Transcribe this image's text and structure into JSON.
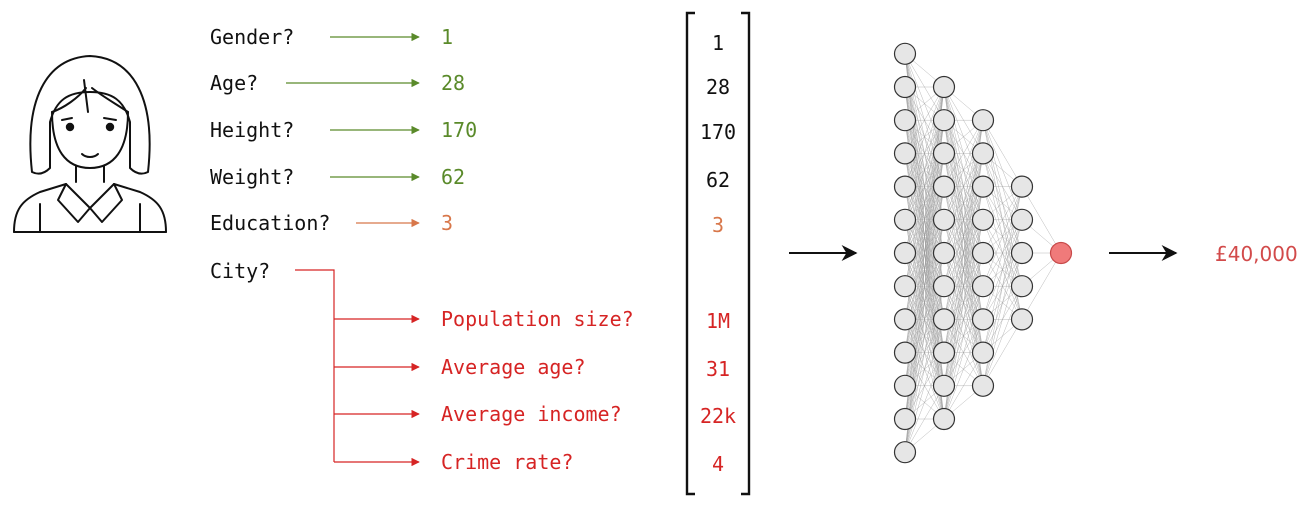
{
  "colors": {
    "text": "#111111",
    "green": "#5a8a2a",
    "orange": "#d8774a",
    "red": "#d62424",
    "output_text": "#d24a4a",
    "node_fill": "#e6e6e6",
    "node_stroke": "#333333",
    "output_node_fill": "#f07a7a",
    "edge": "#9a9a9a"
  },
  "person": {
    "icon": "person-icon"
  },
  "features": [
    {
      "question": "Gender?",
      "value": "1",
      "vector": "1",
      "color": "green"
    },
    {
      "question": "Age?",
      "value": "28",
      "vector": "28",
      "color": "green"
    },
    {
      "question": "Height?",
      "value": "170",
      "vector": "170",
      "color": "green"
    },
    {
      "question": "Weight?",
      "value": "62",
      "vector": "62",
      "color": "green"
    },
    {
      "question": "Education?",
      "value": "3",
      "vector": "3",
      "color": "orange"
    }
  ],
  "city": {
    "question": "City?",
    "subfeatures": [
      {
        "question": "Population size?",
        "vector": "1M"
      },
      {
        "question": "Average age?",
        "vector": "31"
      },
      {
        "question": "Average income?",
        "vector": "22k"
      },
      {
        "question": "Crime rate?",
        "vector": "4"
      }
    ]
  },
  "network": {
    "layers": [
      13,
      11,
      9,
      5,
      1
    ]
  },
  "output": {
    "value": "£40,000"
  }
}
